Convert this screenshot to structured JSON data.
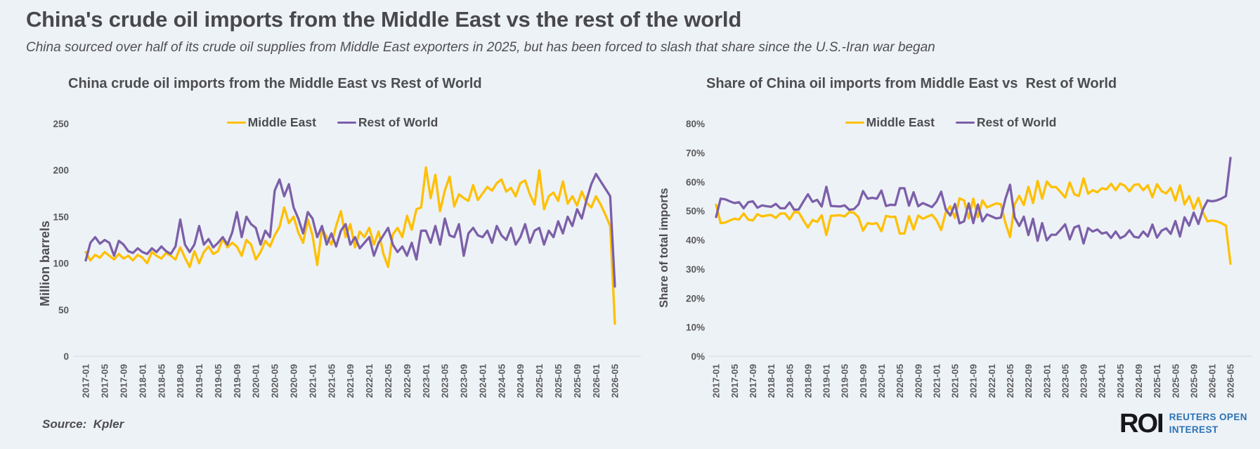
{
  "page": {
    "background": "#EDF2F7"
  },
  "header": {
    "title": "China's crude oil imports from the Middle East vs the rest of the world",
    "subtitle": "China sourced over half of its crude oil supplies from Middle East exporters in 2025, but has been forced to slash that share since the U.S.-Iran war began"
  },
  "colors": {
    "middle_east": "#FFC000",
    "rest_of_world": "#7C5FA8",
    "text": "#4D4D50",
    "tick": "#595959",
    "axis_line": "#D8DEE6",
    "roi_black": "#17171B",
    "roi_blue": "#2A72B5"
  },
  "footer": {
    "source": "Source:  Kpler",
    "logo": {
      "roi": "ROI",
      "line1": "REUTERS OPEN",
      "line2": "INTEREST"
    }
  },
  "chart_data": [
    {
      "type": "line",
      "title": "China crude oil imports from the Middle East vs Rest of World",
      "ylabel": "Million barrels",
      "xlabel": "",
      "ylim": [
        0,
        250
      ],
      "y_ticks": [
        0,
        50,
        100,
        150,
        200,
        250
      ],
      "y_suffix": "",
      "x_tick_step": 4,
      "grid": false,
      "legend_position": "top",
      "x": [
        "2017-01",
        "2017-02",
        "2017-03",
        "2017-04",
        "2017-05",
        "2017-06",
        "2017-07",
        "2017-08",
        "2017-09",
        "2017-10",
        "2017-11",
        "2017-12",
        "2018-01",
        "2018-02",
        "2018-03",
        "2018-04",
        "2018-05",
        "2018-06",
        "2018-07",
        "2018-08",
        "2018-09",
        "2018-10",
        "2018-11",
        "2018-12",
        "2019-01",
        "2019-02",
        "2019-03",
        "2019-04",
        "2019-05",
        "2019-06",
        "2019-07",
        "2019-08",
        "2019-09",
        "2019-10",
        "2019-11",
        "2019-12",
        "2020-01",
        "2020-02",
        "2020-03",
        "2020-04",
        "2020-05",
        "2020-06",
        "2020-07",
        "2020-08",
        "2020-09",
        "2020-10",
        "2020-11",
        "2020-12",
        "2021-01",
        "2021-02",
        "2021-03",
        "2021-04",
        "2021-05",
        "2021-06",
        "2021-07",
        "2021-08",
        "2021-09",
        "2021-10",
        "2021-11",
        "2021-12",
        "2022-01",
        "2022-02",
        "2022-03",
        "2022-04",
        "2022-05",
        "2022-06",
        "2022-07",
        "2022-08",
        "2022-09",
        "2022-10",
        "2022-11",
        "2022-12",
        "2023-01",
        "2023-02",
        "2023-03",
        "2023-04",
        "2023-05",
        "2023-06",
        "2023-07",
        "2023-08",
        "2023-09",
        "2023-10",
        "2023-11",
        "2023-12",
        "2024-01",
        "2024-02",
        "2024-03",
        "2024-04",
        "2024-05",
        "2024-06",
        "2024-07",
        "2024-08",
        "2024-09",
        "2024-10",
        "2024-11",
        "2024-12",
        "2025-01",
        "2025-02",
        "2025-03",
        "2025-04",
        "2025-05",
        "2025-06",
        "2025-07",
        "2025-08",
        "2025-09",
        "2025-10",
        "2025-11",
        "2025-12",
        "2026-01",
        "2026-02",
        "2026-03",
        "2026-04",
        "2026-05"
      ],
      "series": [
        {
          "name": "Middle East",
          "color": "#FFC000",
          "values": [
            112,
            103,
            109,
            106,
            112,
            108,
            104,
            110,
            105,
            108,
            103,
            109,
            106,
            100,
            112,
            108,
            105,
            111,
            108,
            104,
            117,
            106,
            96,
            113,
            100,
            112,
            118,
            110,
            113,
            126,
            117,
            122,
            118,
            108,
            125,
            120,
            104,
            112,
            124,
            118,
            130,
            139,
            160,
            143,
            150,
            133,
            122,
            147,
            130,
            98,
            137,
            128,
            120,
            140,
            156,
            128,
            142,
            117,
            134,
            128,
            138,
            120,
            134,
            110,
            96,
            131,
            138,
            128,
            151,
            136,
            158,
            160,
            203,
            170,
            195,
            156,
            178,
            193,
            161,
            174,
            170,
            167,
            184,
            168,
            175,
            182,
            178,
            186,
            190,
            177,
            181,
            172,
            186,
            189,
            174,
            163,
            200,
            158,
            172,
            176,
            167,
            188,
            164,
            172,
            162,
            177,
            165,
            160,
            172,
            163,
            152,
            140,
            35
          ]
        },
        {
          "name": "Rest of World",
          "color": "#7C5FA8",
          "values": [
            103,
            122,
            128,
            121,
            125,
            122,
            108,
            124,
            120,
            113,
            111,
            116,
            112,
            110,
            116,
            112,
            118,
            113,
            110,
            118,
            147,
            120,
            112,
            120,
            140,
            120,
            126,
            117,
            122,
            128,
            120,
            133,
            155,
            128,
            150,
            142,
            138,
            120,
            135,
            128,
            178,
            190,
            172,
            185,
            160,
            148,
            132,
            155,
            148,
            128,
            140,
            120,
            132,
            118,
            135,
            142,
            120,
            128,
            116,
            122,
            128,
            108,
            122,
            130,
            138,
            120,
            112,
            118,
            108,
            122,
            104,
            135,
            135,
            122,
            140,
            120,
            148,
            130,
            128,
            142,
            108,
            132,
            138,
            130,
            128,
            135,
            122,
            140,
            130,
            125,
            138,
            120,
            128,
            142,
            122,
            135,
            138,
            120,
            135,
            128,
            145,
            132,
            150,
            140,
            158,
            148,
            168,
            185,
            196,
            188,
            180,
            172,
            75
          ]
        }
      ]
    },
    {
      "type": "line",
      "title": "Share of China oil imports from Middle East vs  Rest of World",
      "ylabel": "Share of total imports",
      "xlabel": "",
      "ylim": [
        0,
        80
      ],
      "y_ticks": [
        0,
        10,
        20,
        30,
        40,
        50,
        60,
        70,
        80
      ],
      "y_suffix": "%",
      "x_tick_step": 4,
      "grid": false,
      "legend_position": "top",
      "x": [
        "2017-01",
        "2017-02",
        "2017-03",
        "2017-04",
        "2017-05",
        "2017-06",
        "2017-07",
        "2017-08",
        "2017-09",
        "2017-10",
        "2017-11",
        "2017-12",
        "2018-01",
        "2018-02",
        "2018-03",
        "2018-04",
        "2018-05",
        "2018-06",
        "2018-07",
        "2018-08",
        "2018-09",
        "2018-10",
        "2018-11",
        "2018-12",
        "2019-01",
        "2019-02",
        "2019-03",
        "2019-04",
        "2019-05",
        "2019-06",
        "2019-07",
        "2019-08",
        "2019-09",
        "2019-10",
        "2019-11",
        "2019-12",
        "2020-01",
        "2020-02",
        "2020-03",
        "2020-04",
        "2020-05",
        "2020-06",
        "2020-07",
        "2020-08",
        "2020-09",
        "2020-10",
        "2020-11",
        "2020-12",
        "2021-01",
        "2021-02",
        "2021-03",
        "2021-04",
        "2021-05",
        "2021-06",
        "2021-07",
        "2021-08",
        "2021-09",
        "2021-10",
        "2021-11",
        "2021-12",
        "2022-01",
        "2022-02",
        "2022-03",
        "2022-04",
        "2022-05",
        "2022-06",
        "2022-07",
        "2022-08",
        "2022-09",
        "2022-10",
        "2022-11",
        "2022-12",
        "2023-01",
        "2023-02",
        "2023-03",
        "2023-04",
        "2023-05",
        "2023-06",
        "2023-07",
        "2023-08",
        "2023-09",
        "2023-10",
        "2023-11",
        "2023-12",
        "2024-01",
        "2024-02",
        "2024-03",
        "2024-04",
        "2024-05",
        "2024-06",
        "2024-07",
        "2024-08",
        "2024-09",
        "2024-10",
        "2024-11",
        "2024-12",
        "2025-01",
        "2025-02",
        "2025-03",
        "2025-04",
        "2025-05",
        "2025-06",
        "2025-07",
        "2025-08",
        "2025-09",
        "2025-10",
        "2025-11",
        "2025-12",
        "2026-01",
        "2026-02",
        "2026-03",
        "2026-04",
        "2026-05"
      ],
      "series": [
        {
          "name": "Middle East",
          "color": "#FFC000",
          "values": [
            52.1,
            45.8,
            46.0,
            46.7,
            47.3,
            47.0,
            49.1,
            47.0,
            46.7,
            48.9,
            48.1,
            48.4,
            48.6,
            47.6,
            49.1,
            49.1,
            47.1,
            49.6,
            49.5,
            46.8,
            44.3,
            46.9,
            46.2,
            48.5,
            41.7,
            48.3,
            48.4,
            48.5,
            48.1,
            49.6,
            49.4,
            47.8,
            43.2,
            45.8,
            45.5,
            45.8,
            43.0,
            48.3,
            47.9,
            48.0,
            42.2,
            42.2,
            48.2,
            43.6,
            48.4,
            47.3,
            48.0,
            48.7,
            46.8,
            43.4,
            49.5,
            51.6,
            47.6,
            54.3,
            53.6,
            47.4,
            54.2,
            47.8,
            53.6,
            51.2,
            51.9,
            52.6,
            52.3,
            45.8,
            41.0,
            52.2,
            55.2,
            52.0,
            58.3,
            52.7,
            60.3,
            54.2,
            60.1,
            58.2,
            58.2,
            56.5,
            54.6,
            59.8,
            55.7,
            55.1,
            61.2,
            55.9,
            57.1,
            56.4,
            57.8,
            57.4,
            59.3,
            57.1,
            59.4,
            58.6,
            56.7,
            58.9,
            59.2,
            57.1,
            58.8,
            54.7,
            59.2,
            56.8,
            56.0,
            57.9,
            53.5,
            58.8,
            52.2,
            55.1,
            50.6,
            54.5,
            49.5,
            46.4,
            46.7,
            46.4,
            45.8,
            44.9,
            31.8
          ]
        },
        {
          "name": "Rest of World",
          "color": "#7C5FA8",
          "values": [
            47.9,
            54.2,
            54.0,
            53.3,
            52.7,
            53.0,
            50.9,
            53.0,
            53.3,
            51.1,
            51.9,
            51.6,
            51.4,
            52.4,
            50.9,
            50.9,
            52.9,
            50.4,
            50.5,
            53.2,
            55.7,
            53.1,
            53.8,
            51.5,
            58.3,
            51.7,
            51.6,
            51.5,
            51.9,
            50.4,
            50.6,
            52.2,
            56.8,
            54.2,
            54.5,
            54.2,
            57.0,
            51.7,
            52.1,
            52.0,
            57.8,
            57.8,
            51.8,
            56.4,
            51.6,
            52.7,
            52.0,
            51.3,
            53.2,
            56.6,
            50.5,
            48.4,
            52.4,
            45.7,
            46.4,
            52.6,
            45.8,
            52.2,
            46.4,
            48.8,
            48.1,
            47.4,
            47.7,
            54.2,
            59.0,
            47.8,
            44.8,
            48.0,
            41.7,
            47.3,
            39.7,
            45.8,
            39.9,
            41.8,
            41.8,
            43.5,
            45.4,
            40.2,
            44.3,
            44.9,
            38.8,
            44.1,
            42.9,
            43.6,
            42.2,
            42.6,
            40.7,
            42.9,
            40.6,
            41.4,
            43.3,
            41.1,
            40.8,
            42.9,
            41.2,
            45.3,
            40.8,
            43.2,
            44.0,
            42.1,
            46.5,
            41.2,
            47.8,
            44.9,
            49.4,
            45.5,
            50.5,
            53.6,
            53.3,
            53.6,
            54.2,
            55.1,
            68.2
          ]
        }
      ]
    }
  ]
}
